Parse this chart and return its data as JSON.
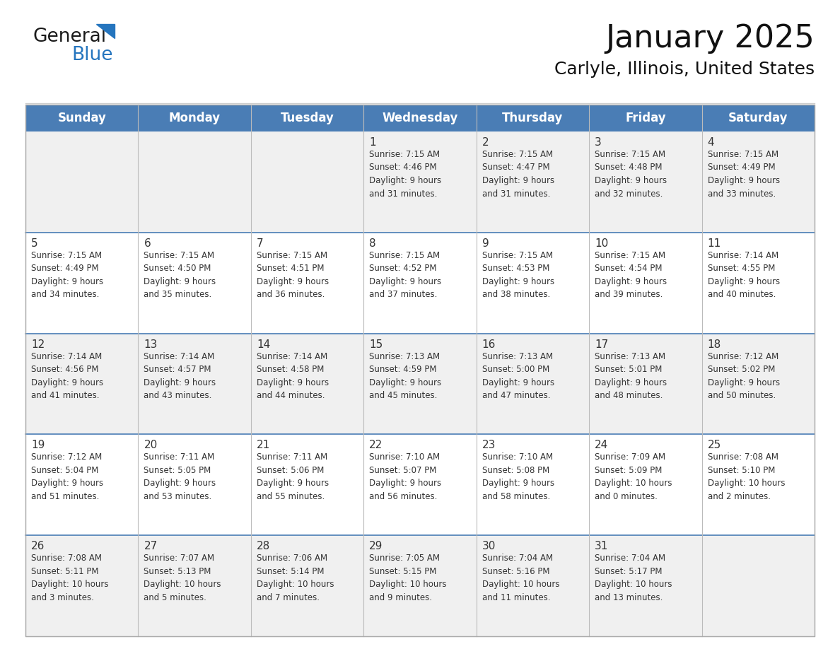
{
  "title": "January 2025",
  "subtitle": "Carlyle, Illinois, United States",
  "header_bg": "#4A7DB5",
  "header_text_color": "#FFFFFF",
  "row_bg_odd": "#F0F0F0",
  "row_bg_even": "#FFFFFF",
  "cell_text_color": "#333333",
  "day_number_color": "#333333",
  "grid_color": "#BBBBBB",
  "separator_color": "#4A7DB5",
  "days_of_week": [
    "Sunday",
    "Monday",
    "Tuesday",
    "Wednesday",
    "Thursday",
    "Friday",
    "Saturday"
  ],
  "logo_general_color": "#1A1A1A",
  "logo_blue_color": "#2575BE",
  "calendar_data": [
    [
      {
        "day": "",
        "info": ""
      },
      {
        "day": "",
        "info": ""
      },
      {
        "day": "",
        "info": ""
      },
      {
        "day": "1",
        "info": "Sunrise: 7:15 AM\nSunset: 4:46 PM\nDaylight: 9 hours\nand 31 minutes."
      },
      {
        "day": "2",
        "info": "Sunrise: 7:15 AM\nSunset: 4:47 PM\nDaylight: 9 hours\nand 31 minutes."
      },
      {
        "day": "3",
        "info": "Sunrise: 7:15 AM\nSunset: 4:48 PM\nDaylight: 9 hours\nand 32 minutes."
      },
      {
        "day": "4",
        "info": "Sunrise: 7:15 AM\nSunset: 4:49 PM\nDaylight: 9 hours\nand 33 minutes."
      }
    ],
    [
      {
        "day": "5",
        "info": "Sunrise: 7:15 AM\nSunset: 4:49 PM\nDaylight: 9 hours\nand 34 minutes."
      },
      {
        "day": "6",
        "info": "Sunrise: 7:15 AM\nSunset: 4:50 PM\nDaylight: 9 hours\nand 35 minutes."
      },
      {
        "day": "7",
        "info": "Sunrise: 7:15 AM\nSunset: 4:51 PM\nDaylight: 9 hours\nand 36 minutes."
      },
      {
        "day": "8",
        "info": "Sunrise: 7:15 AM\nSunset: 4:52 PM\nDaylight: 9 hours\nand 37 minutes."
      },
      {
        "day": "9",
        "info": "Sunrise: 7:15 AM\nSunset: 4:53 PM\nDaylight: 9 hours\nand 38 minutes."
      },
      {
        "day": "10",
        "info": "Sunrise: 7:15 AM\nSunset: 4:54 PM\nDaylight: 9 hours\nand 39 minutes."
      },
      {
        "day": "11",
        "info": "Sunrise: 7:14 AM\nSunset: 4:55 PM\nDaylight: 9 hours\nand 40 minutes."
      }
    ],
    [
      {
        "day": "12",
        "info": "Sunrise: 7:14 AM\nSunset: 4:56 PM\nDaylight: 9 hours\nand 41 minutes."
      },
      {
        "day": "13",
        "info": "Sunrise: 7:14 AM\nSunset: 4:57 PM\nDaylight: 9 hours\nand 43 minutes."
      },
      {
        "day": "14",
        "info": "Sunrise: 7:14 AM\nSunset: 4:58 PM\nDaylight: 9 hours\nand 44 minutes."
      },
      {
        "day": "15",
        "info": "Sunrise: 7:13 AM\nSunset: 4:59 PM\nDaylight: 9 hours\nand 45 minutes."
      },
      {
        "day": "16",
        "info": "Sunrise: 7:13 AM\nSunset: 5:00 PM\nDaylight: 9 hours\nand 47 minutes."
      },
      {
        "day": "17",
        "info": "Sunrise: 7:13 AM\nSunset: 5:01 PM\nDaylight: 9 hours\nand 48 minutes."
      },
      {
        "day": "18",
        "info": "Sunrise: 7:12 AM\nSunset: 5:02 PM\nDaylight: 9 hours\nand 50 minutes."
      }
    ],
    [
      {
        "day": "19",
        "info": "Sunrise: 7:12 AM\nSunset: 5:04 PM\nDaylight: 9 hours\nand 51 minutes."
      },
      {
        "day": "20",
        "info": "Sunrise: 7:11 AM\nSunset: 5:05 PM\nDaylight: 9 hours\nand 53 minutes."
      },
      {
        "day": "21",
        "info": "Sunrise: 7:11 AM\nSunset: 5:06 PM\nDaylight: 9 hours\nand 55 minutes."
      },
      {
        "day": "22",
        "info": "Sunrise: 7:10 AM\nSunset: 5:07 PM\nDaylight: 9 hours\nand 56 minutes."
      },
      {
        "day": "23",
        "info": "Sunrise: 7:10 AM\nSunset: 5:08 PM\nDaylight: 9 hours\nand 58 minutes."
      },
      {
        "day": "24",
        "info": "Sunrise: 7:09 AM\nSunset: 5:09 PM\nDaylight: 10 hours\nand 0 minutes."
      },
      {
        "day": "25",
        "info": "Sunrise: 7:08 AM\nSunset: 5:10 PM\nDaylight: 10 hours\nand 2 minutes."
      }
    ],
    [
      {
        "day": "26",
        "info": "Sunrise: 7:08 AM\nSunset: 5:11 PM\nDaylight: 10 hours\nand 3 minutes."
      },
      {
        "day": "27",
        "info": "Sunrise: 7:07 AM\nSunset: 5:13 PM\nDaylight: 10 hours\nand 5 minutes."
      },
      {
        "day": "28",
        "info": "Sunrise: 7:06 AM\nSunset: 5:14 PM\nDaylight: 10 hours\nand 7 minutes."
      },
      {
        "day": "29",
        "info": "Sunrise: 7:05 AM\nSunset: 5:15 PM\nDaylight: 10 hours\nand 9 minutes."
      },
      {
        "day": "30",
        "info": "Sunrise: 7:04 AM\nSunset: 5:16 PM\nDaylight: 10 hours\nand 11 minutes."
      },
      {
        "day": "31",
        "info": "Sunrise: 7:04 AM\nSunset: 5:17 PM\nDaylight: 10 hours\nand 13 minutes."
      },
      {
        "day": "",
        "info": ""
      }
    ]
  ]
}
